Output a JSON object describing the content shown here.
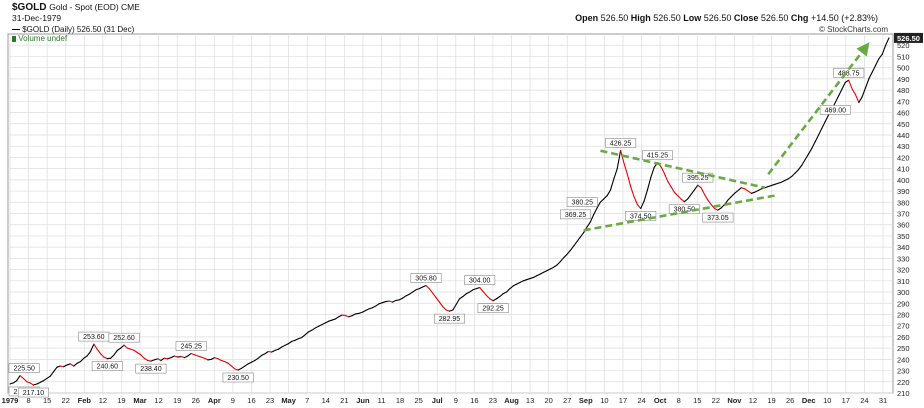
{
  "header": {
    "symbol": "$GOLD",
    "description": "Gold - Spot (EOD) CME",
    "date": "31-Dec-1979",
    "watermark": "© StockCharts.com",
    "legend_price": "$GOLD (Daily) 526.50 (31 Dec)",
    "legend_volume": "Volume undef",
    "ohlc": {
      "open_label": "Open",
      "open": "526.50",
      "high_label": "High",
      "high": "526.50",
      "low_label": "Low",
      "low": "526.50",
      "close_label": "Close",
      "close": "526.50",
      "chg_label": "Chg",
      "chg": "+14.50 (+2.83%)"
    }
  },
  "colors": {
    "up": "#000000",
    "down": "#ee0000",
    "grid": "#dddddd",
    "trend": "#6aaa44",
    "last_price_bg": "#222222"
  },
  "chart_data": {
    "type": "line",
    "ylim": [
      210,
      530
    ],
    "y_ticks": [
      210,
      220,
      230,
      240,
      250,
      260,
      270,
      280,
      290,
      300,
      310,
      320,
      330,
      340,
      350,
      360,
      370,
      380,
      390,
      400,
      410,
      420,
      430,
      440,
      450,
      460,
      470,
      480,
      490,
      500,
      510,
      520
    ],
    "x_ticks": [
      {
        "label": "1979",
        "bold": true
      },
      {
        "label": "8"
      },
      {
        "label": "15"
      },
      {
        "label": "22"
      },
      {
        "label": "Feb",
        "bold": true
      },
      {
        "label": "12"
      },
      {
        "label": "19"
      },
      {
        "label": "Mar",
        "bold": true
      },
      {
        "label": "12"
      },
      {
        "label": "19"
      },
      {
        "label": "26"
      },
      {
        "label": "Apr",
        "bold": true
      },
      {
        "label": "9"
      },
      {
        "label": "16"
      },
      {
        "label": "23"
      },
      {
        "label": "May",
        "bold": true
      },
      {
        "label": "7"
      },
      {
        "label": "14"
      },
      {
        "label": "21"
      },
      {
        "label": "Jun",
        "bold": true
      },
      {
        "label": "11"
      },
      {
        "label": "18"
      },
      {
        "label": "25"
      },
      {
        "label": "Jul",
        "bold": true
      },
      {
        "label": "9"
      },
      {
        "label": "16"
      },
      {
        "label": "23"
      },
      {
        "label": "Aug",
        "bold": true
      },
      {
        "label": "13"
      },
      {
        "label": "20"
      },
      {
        "label": "27"
      },
      {
        "label": "Sep",
        "bold": true
      },
      {
        "label": "10"
      },
      {
        "label": "17"
      },
      {
        "label": "24"
      },
      {
        "label": "Oct",
        "bold": true
      },
      {
        "label": "8"
      },
      {
        "label": "15"
      },
      {
        "label": "22"
      },
      {
        "label": "Nov",
        "bold": true
      },
      {
        "label": "12"
      },
      {
        "label": "19"
      },
      {
        "label": "26"
      },
      {
        "label": "Dec",
        "bold": true
      },
      {
        "label": "10"
      },
      {
        "label": "17"
      },
      {
        "label": "24"
      },
      {
        "label": "31"
      }
    ],
    "series": [
      {
        "values": [
          218.05,
          219,
          221,
          225.5,
          223,
          220,
          219,
          217.1,
          218,
          219.5,
          221,
          223,
          225,
          229,
          233,
          234,
          233.5,
          235,
          236,
          234,
          236.5,
          238,
          241,
          243,
          247,
          253.6,
          249,
          245,
          242,
          240.6,
          241,
          244,
          248,
          250,
          252.6,
          250,
          249,
          248,
          246,
          244,
          241,
          239,
          238.4,
          239.5,
          240.5,
          239,
          241,
          240.5,
          241.5,
          243,
          242,
          242.5,
          241.5,
          243,
          245.25,
          244,
          243,
          242,
          241,
          239.5,
          240,
          241.5,
          240.5,
          239,
          238,
          236.5,
          234,
          231.5,
          230.5,
          232,
          234,
          236,
          237.5,
          239,
          241,
          243.5,
          245,
          247,
          246.5,
          248,
          249,
          251,
          252.5,
          254,
          256,
          257,
          258.5,
          259.5,
          262,
          264.5,
          266,
          268,
          269.5,
          271,
          272.5,
          274,
          275,
          276,
          278,
          279.5,
          279,
          278,
          279,
          280.5,
          281,
          282,
          283.5,
          285,
          286,
          287.5,
          289.5,
          290.5,
          291.5,
          292,
          291,
          292.5,
          293,
          294.5,
          296.5,
          298,
          300,
          302,
          303,
          304.5,
          305.8,
          303,
          299,
          295,
          291,
          287,
          284,
          282.95,
          284,
          289,
          294,
          296,
          298.5,
          300,
          302,
          303,
          304,
          300.5,
          297,
          294,
          292.25,
          294,
          296,
          298.5,
          300,
          303,
          305.5,
          307,
          308.5,
          310,
          311,
          312,
          313,
          314.5,
          316,
          317.5,
          319,
          320.5,
          322,
          324,
          327,
          330.5,
          333.5,
          337,
          341,
          345,
          349,
          353,
          358,
          362.5,
          369.25,
          375,
          380.25,
          383,
          386,
          391,
          401,
          410,
          426.25,
          415,
          405,
          394,
          385,
          378,
          374.5,
          381,
          391,
          402,
          411,
          415.25,
          412,
          406,
          399,
          394,
          389,
          386,
          383,
          380.5,
          383,
          387,
          391,
          395.25,
          393,
          387,
          382,
          378,
          374.5,
          373.05,
          375,
          378,
          382,
          385,
          388,
          390.5,
          393,
          392,
          390,
          388,
          389,
          390.5,
          392,
          393,
          394,
          395,
          396,
          397,
          398,
          399.5,
          401,
          403,
          406,
          409,
          413,
          418,
          423,
          428,
          434,
          440,
          446,
          452,
          458,
          463,
          469,
          475,
          481,
          487,
          488.75,
          481,
          476,
          469,
          474,
          482,
          490,
          496,
          502,
          508,
          512,
          520,
          526.5
        ]
      }
    ],
    "annotations": [
      {
        "label": "218.05",
        "value": 218.05,
        "pos": "below"
      },
      {
        "label": "225.50",
        "value": 225.5,
        "pos": "above"
      },
      {
        "label": "217.10",
        "value": 217.1,
        "pos": "below"
      },
      {
        "label": "253.60",
        "value": 253.6,
        "pos": "above"
      },
      {
        "label": "240.60",
        "value": 240.6,
        "pos": "below"
      },
      {
        "label": "252.60",
        "value": 252.6,
        "pos": "above"
      },
      {
        "label": "238.40",
        "value": 238.4,
        "pos": "below"
      },
      {
        "label": "245.25",
        "value": 245.25,
        "pos": "above"
      },
      {
        "label": "230.50",
        "value": 230.5,
        "pos": "below"
      },
      {
        "label": "305.80",
        "value": 305.8,
        "pos": "above"
      },
      {
        "label": "282.95",
        "value": 282.95,
        "pos": "below"
      },
      {
        "label": "304.00",
        "value": 304,
        "pos": "above"
      },
      {
        "label": "292.25",
        "value": 292.25,
        "pos": "below"
      },
      {
        "label": "380.25",
        "value": 380.25,
        "pos": "left"
      },
      {
        "label": "369.25",
        "value": 369.25,
        "pos": "left"
      },
      {
        "label": "426.25",
        "value": 426.25,
        "pos": "above"
      },
      {
        "label": "374.50",
        "value": 374.5,
        "pos": "below"
      },
      {
        "label": "415.25",
        "value": 415.25,
        "pos": "above"
      },
      {
        "label": "380.50",
        "value": 380.5,
        "pos": "below"
      },
      {
        "label": "395.25",
        "value": 395.25,
        "pos": "above"
      },
      {
        "label": "373.05",
        "value": 373.05,
        "pos": "below"
      },
      {
        "label": "488.75",
        "value": 488.75,
        "pos": "above"
      },
      {
        "label": "469.00",
        "value": 469,
        "pos": "below"
      }
    ],
    "trend_lines": [
      {
        "style": "dashed",
        "from": [
          176,
          426
        ],
        "to": [
          225,
          393
        ]
      },
      {
        "style": "dashed",
        "from": [
          171,
          355
        ],
        "to": [
          228,
          386
        ]
      },
      {
        "style": "dashed-arrow",
        "from": [
          226,
          405
        ],
        "to": [
          255,
          518
        ]
      }
    ],
    "last_price_label": "526.50"
  }
}
